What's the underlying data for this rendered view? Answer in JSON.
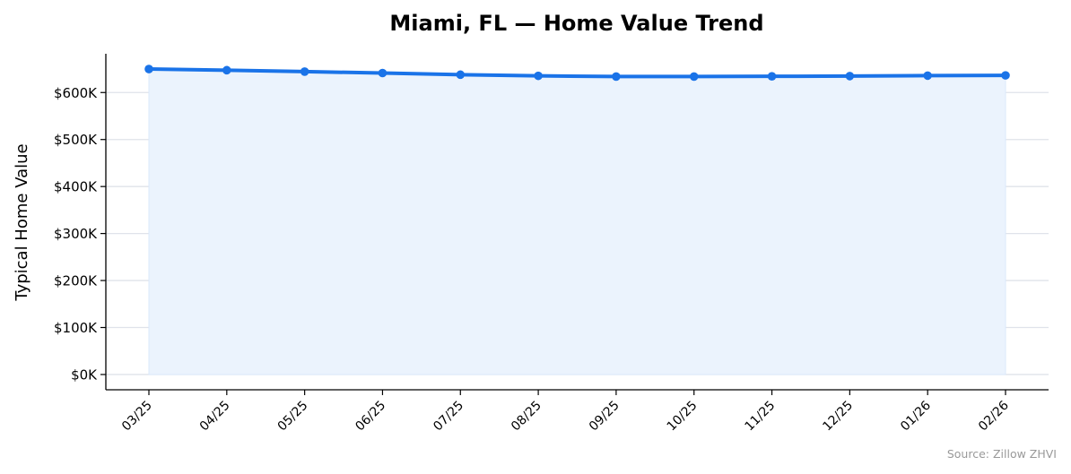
{
  "chart_data": {
    "type": "line",
    "title": "Miami, FL — Home Value Trend",
    "xlabel": "",
    "ylabel": "Typical Home Value",
    "categories": [
      "03/25",
      "04/25",
      "05/25",
      "06/25",
      "07/25",
      "08/25",
      "09/25",
      "10/25",
      "11/25",
      "12/25",
      "01/26",
      "02/26"
    ],
    "series": [
      {
        "values": [
          650000,
          647500,
          644500,
          641500,
          638000,
          635500,
          634000,
          634000,
          634500,
          635000,
          636000,
          636500
        ]
      }
    ],
    "yticks": [
      0,
      100000,
      200000,
      300000,
      400000,
      500000,
      600000
    ],
    "ytick_labels": [
      "$0K",
      "$100K",
      "$200K",
      "$300K",
      "$400K",
      "$500K",
      "$600K"
    ],
    "ylim": [
      -32500,
      682500
    ],
    "grid": "horizontal",
    "line_color": "#1a73e8",
    "fill_color": "#ebf3fd",
    "source": "Source: Zillow ZHVI"
  }
}
